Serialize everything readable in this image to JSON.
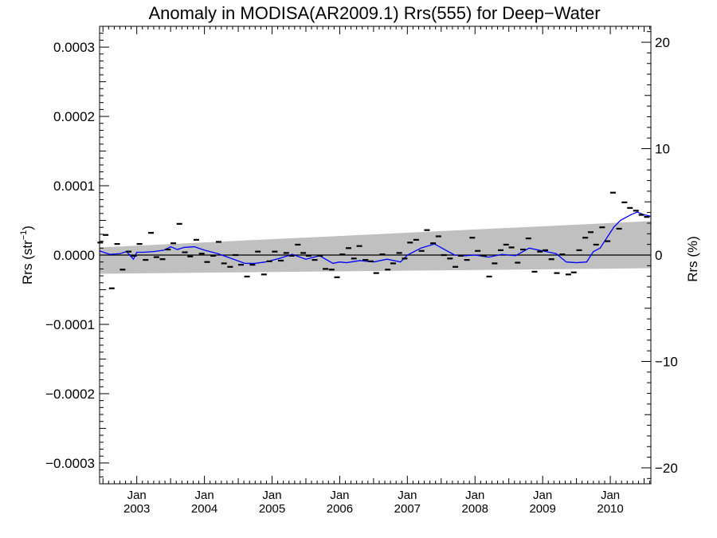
{
  "chart_data": {
    "type": "scatter",
    "title": "Anomaly in MODISA(AR2009.1) Rrs(555) for Deep−Water",
    "ylabel_left": "Rrs (str",
    "ylabel_left_sup": "−1",
    "ylabel_left_close": ")",
    "ylabel_right": "Rrs (%)",
    "x_tick_month": "Jan",
    "x_ticks": [
      2003,
      2004,
      2005,
      2006,
      2007,
      2008,
      2009,
      2010
    ],
    "x_tick_labels": [
      "2003",
      "2004",
      "2005",
      "2006",
      "2007",
      "2008",
      "2009",
      "2010"
    ],
    "xlim": [
      2002.45,
      2010.6
    ],
    "ylim": [
      -0.00033,
      0.00033
    ],
    "y_ticks": [
      -0.0003,
      -0.0002,
      -0.0001,
      0.0,
      0.0001,
      0.0002,
      0.0003
    ],
    "y_tick_labels": [
      "−0.0003",
      "−0.0002",
      "−0.0001",
      "0.0000",
      "0.0001",
      "0.0002",
      "0.0003"
    ],
    "y2_ticks": [
      -20,
      -10,
      0,
      10,
      20
    ],
    "y2_tick_labels": [
      "−20",
      "−10",
      "0",
      "10",
      "20"
    ],
    "y2_lim": [
      -21.5,
      21.5
    ],
    "grid": false,
    "colors": {
      "band": "#c0c0c0",
      "smooth_line": "#0000ff",
      "points": "#000000",
      "zero_line": "#000000"
    },
    "uncertainty_band": {
      "x": [
        2002.45,
        2010.6
      ],
      "lower": [
        -2.7e-05,
        -1.9e-05
      ],
      "upper": [
        1.1e-05,
        4.9e-05
      ]
    },
    "monthly_anomaly": {
      "x": [
        2002.46,
        2002.54,
        2002.63,
        2002.71,
        2002.79,
        2002.88,
        2002.96,
        2003.04,
        2003.13,
        2003.21,
        2003.29,
        2003.38,
        2003.46,
        2003.54,
        2003.63,
        2003.71,
        2003.79,
        2003.88,
        2003.96,
        2004.04,
        2004.13,
        2004.21,
        2004.29,
        2004.38,
        2004.46,
        2004.54,
        2004.63,
        2004.71,
        2004.79,
        2004.88,
        2004.96,
        2005.04,
        2005.13,
        2005.21,
        2005.29,
        2005.38,
        2005.46,
        2005.54,
        2005.63,
        2005.71,
        2005.79,
        2005.88,
        2005.96,
        2006.04,
        2006.13,
        2006.21,
        2006.29,
        2006.38,
        2006.46,
        2006.54,
        2006.63,
        2006.71,
        2006.79,
        2006.88,
        2006.96,
        2007.04,
        2007.13,
        2007.21,
        2007.29,
        2007.38,
        2007.46,
        2007.54,
        2007.63,
        2007.71,
        2007.79,
        2007.88,
        2007.96,
        2008.04,
        2008.13,
        2008.21,
        2008.29,
        2008.38,
        2008.46,
        2008.54,
        2008.63,
        2008.71,
        2008.79,
        2008.88,
        2008.96,
        2009.04,
        2009.13,
        2009.21,
        2009.29,
        2009.38,
        2009.46,
        2009.54,
        2009.63,
        2009.71,
        2009.79,
        2009.88,
        2009.96,
        2010.04,
        2010.13,
        2010.21,
        2010.29,
        2010.38,
        2010.46,
        2010.54
      ],
      "y": [
        1.8e-05,
        2.9e-05,
        -4.8e-05,
        1.6e-05,
        -2.1e-05,
        5e-06,
        -1e-06,
        1.6e-05,
        -7e-06,
        3.2e-05,
        -3e-06,
        -6e-06,
        8e-06,
        1.7e-05,
        4.5e-05,
        4e-06,
        -2e-06,
        2.2e-05,
        2e-06,
        -1e-05,
        -1e-06,
        1.9e-05,
        -1.2e-05,
        -1.7e-05,
        0.0,
        -1.4e-05,
        -3.1e-05,
        -1.4e-05,
        5e-06,
        -2.8e-05,
        -9e-06,
        5e-06,
        -8e-06,
        3e-06,
        -1e-06,
        1.5e-05,
        3e-06,
        -1e-06,
        -7e-06,
        -1e-06,
        -2e-05,
        -2.1e-05,
        -3.2e-05,
        1e-06,
        1e-05,
        -5e-06,
        1.3e-05,
        -7e-06,
        -9e-06,
        -2.6e-05,
        1e-06,
        -2.1e-05,
        -1.2e-05,
        3e-06,
        -5e-06,
        1.8e-05,
        2.2e-05,
        6e-06,
        3.6e-05,
        1.7e-05,
        2.7e-05,
        0.0,
        -5e-06,
        -1.7e-05,
        -1e-06,
        -7e-06,
        2.5e-05,
        6e-06,
        -1e-06,
        -3.1e-05,
        -1.2e-05,
        7e-06,
        1.5e-05,
        1.1e-05,
        -1.1e-05,
        8e-06,
        2.4e-05,
        -2.4e-05,
        5e-06,
        7e-06,
        -6e-06,
        -2.6e-05,
        1e-06,
        -2.8e-05,
        -2.5e-05,
        7e-06,
        2.5e-05,
        3.3e-05,
        1.5e-05,
        4e-05,
        2e-05,
        9e-05,
        3.8e-05,
        7.6e-05,
        6.8e-05,
        6.4e-05,
        5.8e-05,
        5.5e-05
      ]
    },
    "running_mean": {
      "x": [
        2002.45,
        2002.6,
        2002.75,
        2002.85,
        2002.95,
        2003.0,
        2003.1,
        2003.25,
        2003.4,
        2003.5,
        2003.6,
        2003.7,
        2003.85,
        2004.0,
        2004.2,
        2004.4,
        2004.6,
        2004.75,
        2004.9,
        2005.1,
        2005.3,
        2005.5,
        2005.7,
        2005.9,
        2006.0,
        2006.1,
        2006.3,
        2006.5,
        2006.7,
        2006.9,
        2007.0,
        2007.2,
        2007.4,
        2007.55,
        2007.7,
        2007.85,
        2008.0,
        2008.2,
        2008.4,
        2008.6,
        2008.8,
        2009.0,
        2009.2,
        2009.35,
        2009.5,
        2009.65,
        2009.75,
        2009.85,
        2009.95,
        2010.05,
        2010.15,
        2010.3,
        2010.4,
        2010.5,
        2010.6
      ],
      "y": [
        6e-06,
        1e-06,
        2e-06,
        5e-06,
        -6e-06,
        4e-06,
        4e-06,
        5e-06,
        7e-06,
        1.2e-05,
        8e-06,
        1.1e-05,
        1.2e-05,
        7e-06,
        2e-06,
        -5e-06,
        -1.2e-05,
        -1.2e-05,
        -1e-05,
        -5e-06,
        1e-06,
        -6e-06,
        -1e-06,
        -1.2e-05,
        -1e-05,
        -1.1e-05,
        -8e-06,
        -1e-05,
        -6e-06,
        -1e-05,
        0.0,
        1e-05,
        1.6e-05,
        8e-06,
        0.0,
        -1e-06,
        0.0,
        -3e-06,
        1e-06,
        -1e-06,
        1e-05,
        6e-06,
        2e-06,
        -1e-05,
        -1.1e-05,
        -1e-05,
        5e-06,
        1e-05,
        2.5e-05,
        4e-05,
        5e-05,
        5.8e-05,
        6.2e-05,
        5.8e-05,
        5.6e-05
      ]
    }
  }
}
